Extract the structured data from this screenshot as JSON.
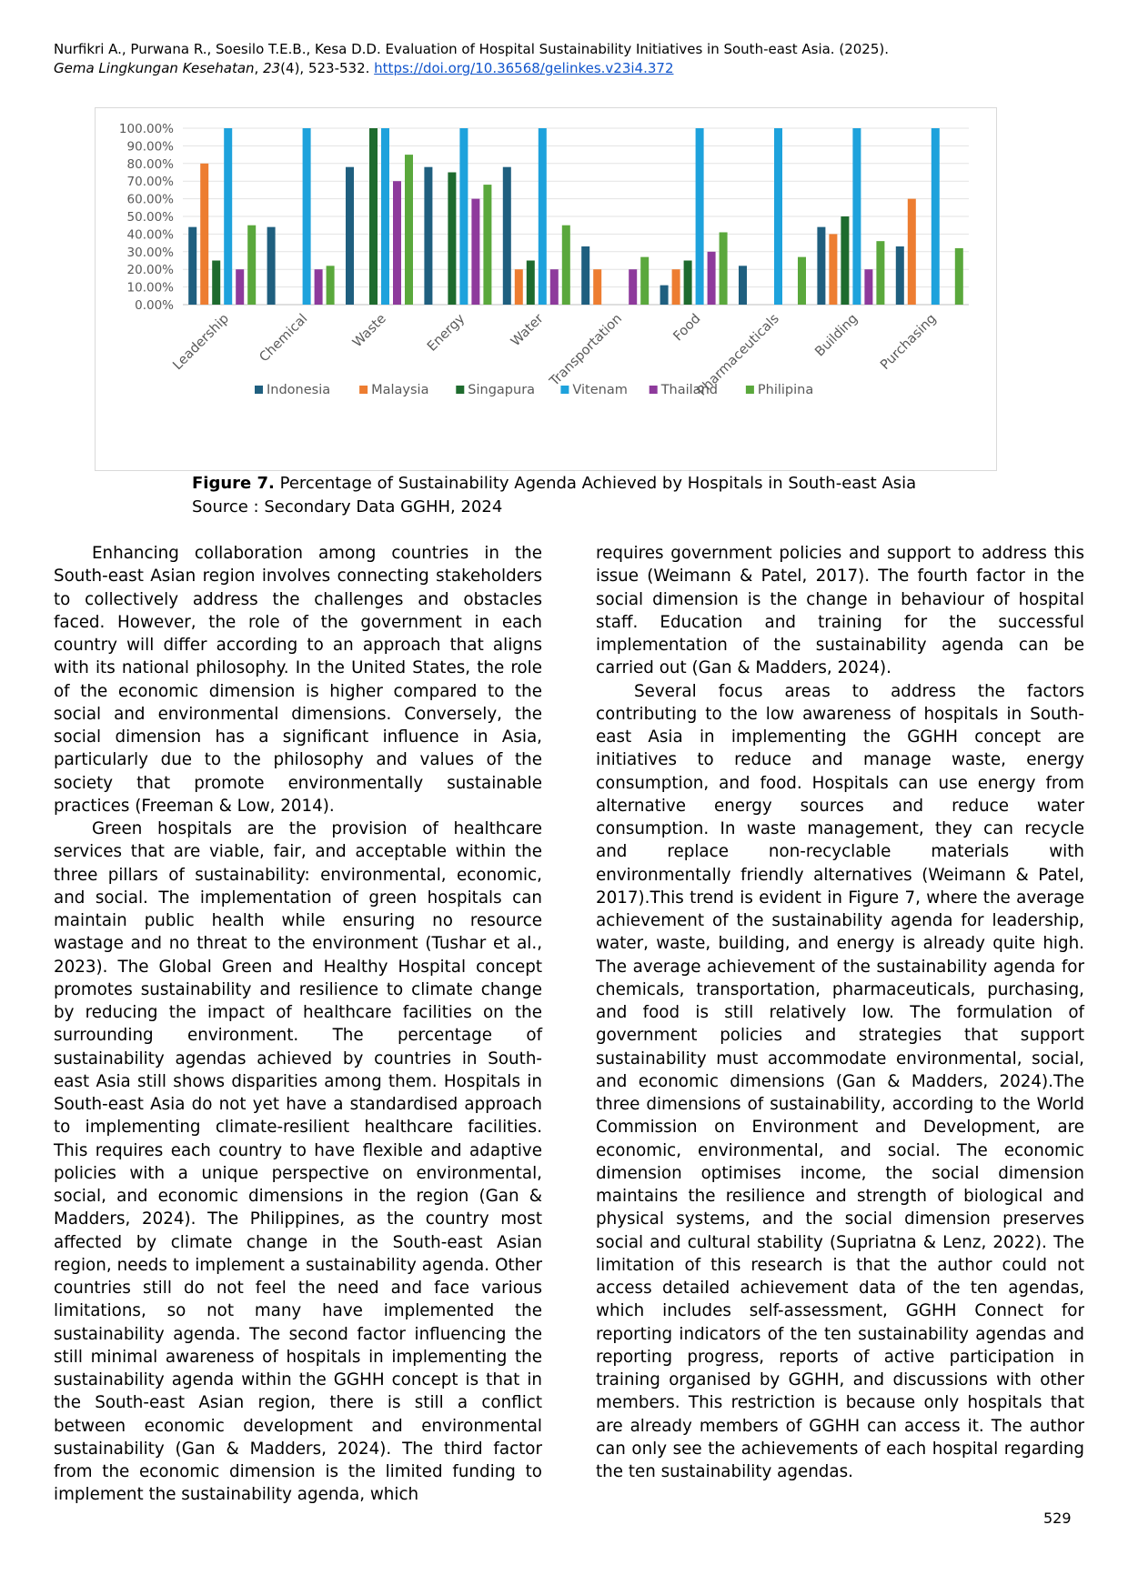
{
  "header": {
    "citation": "Nurfikri A., Purwana R., Soesilo T.E.B., Kesa D.D. Evaluation of Hospital Sustainability Initiatives in South-east Asia. (2025).",
    "journal": "Gema Lingkungan Kesehatan",
    "volume_sep": ", ",
    "volume": "23",
    "issue_pages": "(4), 523-532. ",
    "doi": "https://doi.org/10.36568/gelinkes.v23i4.372"
  },
  "chart_data": {
    "type": "bar",
    "title": "",
    "xlabel": "",
    "ylabel": "",
    "ylim": [
      0,
      100
    ],
    "grid": true,
    "legend": "bottom",
    "y_ticks": [
      "0.00%",
      "10.00%",
      "20.00%",
      "30.00%",
      "40.00%",
      "50.00%",
      "60.00%",
      "70.00%",
      "80.00%",
      "90.00%",
      "100.00%"
    ],
    "categories": [
      "Leadership",
      "Chemical",
      "Waste",
      "Energy",
      "Water",
      "Transportation",
      "Food",
      "Pharmaceuticals",
      "Building",
      "Purchasing"
    ],
    "series": [
      {
        "name": "Indonesia",
        "color": "#1f5f7f",
        "values": [
          44,
          44,
          78,
          78,
          78,
          33,
          11,
          22,
          44,
          33
        ]
      },
      {
        "name": "Malaysia",
        "color": "#ed7d31",
        "values": [
          80,
          0,
          0,
          0,
          20,
          20,
          20,
          0,
          40,
          60
        ]
      },
      {
        "name": "Singapura",
        "color": "#1e6b2e",
        "values": [
          25,
          0,
          100,
          75,
          25,
          0,
          25,
          0,
          50,
          0
        ]
      },
      {
        "name": "Vitenam",
        "color": "#1ea2dc",
        "values": [
          100,
          100,
          100,
          100,
          100,
          0,
          100,
          100,
          100,
          100
        ]
      },
      {
        "name": "Thailand",
        "color": "#8e3a9c",
        "values": [
          20,
          20,
          70,
          60,
          20,
          20,
          30,
          0,
          20,
          0
        ]
      },
      {
        "name": "Philipina",
        "color": "#5aa83c",
        "values": [
          45,
          22,
          85,
          68,
          45,
          27,
          41,
          27,
          36,
          32
        ]
      }
    ]
  },
  "caption": {
    "label": "Figure 7.",
    "text": " Percentage of Sustainability Agenda Achieved by Hospitals in South-east Asia",
    "source": "Source : Secondary Data GGHH, 2024"
  },
  "body": {
    "left": [
      "Enhancing collaboration among countries in the South-east Asian region involves connecting stakeholders to collectively address the challenges and obstacles faced. However, the role of the government in each country will differ according to an approach that aligns with its national philosophy. In the United States, the role of the economic dimension is higher compared to the social and environmental dimensions. Conversely, the social dimension has a significant influence in Asia, particularly due to the philosophy and values of the society that promote environmentally sustainable practices (Freeman & Low, 2014).",
      "Green hospitals are the provision of healthcare services that are viable, fair, and acceptable within the three pillars of sustainability: environmental, economic, and social. The implementation of green hospitals can maintain public health while ensuring no resource wastage and no threat to the environment (Tushar et al., 2023). The Global Green and Healthy Hospital concept promotes sustainability and resilience to climate change by reducing the impact of healthcare facilities on the surrounding environment. The percentage of sustainability agendas achieved by countries in South-east Asia still shows disparities among them. Hospitals in South-east Asia do not yet have a standardised approach to implementing climate-resilient healthcare facilities. This requires each country to have flexible and adaptive policies with a unique perspective on environmental, social, and economic dimensions in the region (Gan & Madders, 2024). The Philippines, as the country most affected by climate change in the South-east Asian region, needs to implement a sustainability agenda. Other countries still do not feel the need and face various limitations, so not many have implemented the sustainability agenda. The second factor influencing the still minimal awareness of hospitals in implementing the sustainability agenda within the GGHH concept is that in the South-east Asian region, there is still a conflict between economic development and environmental sustainability (Gan & Madders, 2024). The third factor from the economic dimension is the limited funding to implement the sustainability agenda, which"
    ],
    "right_cont": "requires government policies and support to address this issue (Weimann & Patel, 2017). The fourth factor in the social dimension is the change in behaviour of hospital staff. Education and training for the successful implementation of the sustainability agenda can be carried out (Gan & Madders, 2024).",
    "right_p2": "Several focus areas to address the factors contributing to the low awareness of hospitals in South-east Asia in implementing the GGHH concept are initiatives to reduce and manage waste, energy consumption, and food. Hospitals can use energy from alternative energy sources and reduce water consumption. In waste management, they can recycle and replace non-recyclable materials with environmentally friendly alternatives (Weimann & Patel, 2017).This trend is evident in Figure 7, where the average achievement of the sustainability agenda for leadership, water, waste, building, and energy is already quite high. The average achievement of the sustainability agenda for chemicals, transportation, pharmaceuticals, purchasing, and food is still relatively low. The formulation of government policies and strategies that support sustainability must accommodate environmental, social, and economic dimensions (Gan & Madders, 2024).The three dimensions of sustainability, according to the World Commission on Environment and Development, are economic, environmental, and social. The economic dimension optimises income, the social dimension maintains the resilience and strength of biological and physical systems, and the social dimension preserves social and cultural stability (Supriatna & Lenz, 2022). The limitation of this research is that the author could not access detailed achievement data of the ten agendas, which includes self-assessment, GGHH Connect for reporting indicators of the ten sustainability agendas and reporting progress, reports of active participation in training organised by GGHH, and discussions with other members. This restriction is because only hospitals that are already members of GGHH can access it. The author can only see the achievements of each hospital regarding the ten sustainability agendas."
  },
  "page_number": "529"
}
